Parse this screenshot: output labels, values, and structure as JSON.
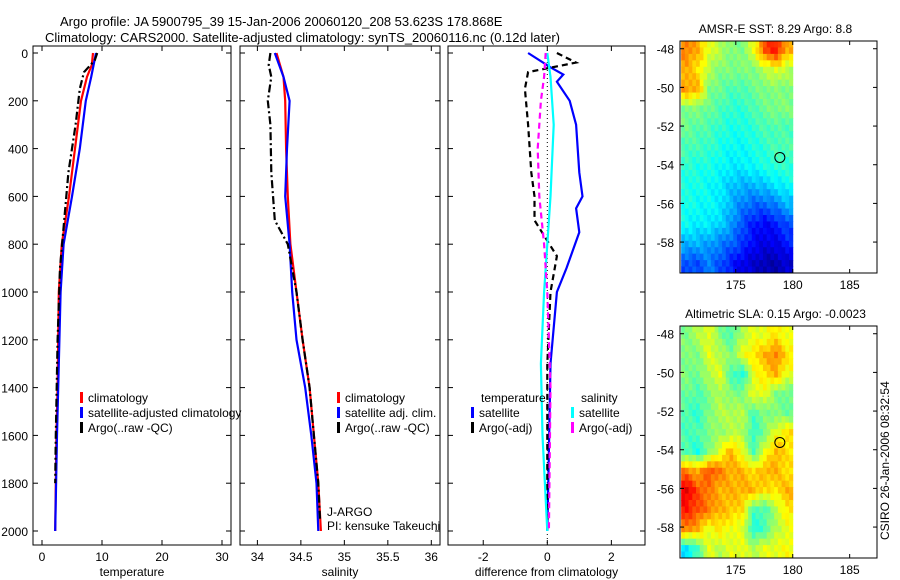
{
  "title_line1": "Argo profile: JA 5900795_39 15-Jan-2006 20060120_208 53.623S 178.868E",
  "title_line2": "Climatology: CARS2000. Satellite-adjusted climatology: synTS_20060116.nc (0.12d later)",
  "credit": "CSIRO 26-Jan-2006 08:32:54",
  "chart_data": [
    {
      "type": "line",
      "id": "temperature",
      "xlabel": "temperature",
      "ylabel": "",
      "xlim": [
        -1.5,
        31.5
      ],
      "ylim": [
        2060,
        0
      ],
      "xticks": [
        0,
        10,
        20,
        30
      ],
      "yticks": [
        0,
        200,
        400,
        600,
        800,
        1000,
        1200,
        1400,
        1600,
        1800,
        2000
      ],
      "legend": [
        "climatology",
        "satellite-adjusted climatology",
        "Argo(..raw -QC)"
      ],
      "series": [
        {
          "name": "climatology",
          "color": "#ff0000",
          "style": "solid",
          "depth": [
            0,
            50,
            100,
            200,
            400,
            600,
            800,
            1000,
            1200,
            1400,
            1600,
            1800,
            2000
          ],
          "values": [
            8.5,
            8.3,
            7.5,
            6.5,
            5.5,
            4.5,
            3.3,
            2.8,
            2.7,
            2.6,
            2.4,
            2.3,
            2.2
          ]
        },
        {
          "name": "satellite-adjusted climatology",
          "color": "#0000ff",
          "style": "solid",
          "depth": [
            0,
            100,
            200,
            400,
            600,
            800,
            1000,
            1200,
            1600,
            2000
          ],
          "values": [
            9.0,
            8.2,
            7.3,
            6.3,
            5.0,
            3.6,
            3.1,
            2.9,
            2.5,
            2.2
          ]
        },
        {
          "name": "Argo(..raw -QC)",
          "color": "#000000",
          "style": "dashdot",
          "depth": [
            0,
            30,
            80,
            150,
            300,
            500,
            700,
            900,
            1200,
            1600,
            1800
          ],
          "values": [
            9.2,
            8.8,
            7.0,
            6.3,
            5.6,
            4.4,
            3.7,
            3.0,
            2.6,
            2.3,
            2.2
          ]
        }
      ]
    },
    {
      "type": "line",
      "id": "salinity",
      "xlabel": "salinity",
      "xlim": [
        33.8,
        36.1
      ],
      "ylim": [
        2060,
        0
      ],
      "xticks": [
        34,
        34.5,
        35,
        35.5,
        36
      ],
      "legend": [
        "climatology",
        "satellite adj. clim.",
        "Argo(..raw -QC)"
      ],
      "annotation": [
        "J-ARGO",
        "PI: kensuke Takeuchi"
      ],
      "series": [
        {
          "name": "climatology",
          "color": "#ff0000",
          "style": "solid",
          "depth": [
            0,
            100,
            200,
            400,
            600,
            800,
            1000,
            1200,
            1400,
            1600,
            1800,
            2000
          ],
          "values": [
            34.22,
            34.3,
            34.32,
            34.33,
            34.35,
            34.38,
            34.45,
            34.52,
            34.6,
            34.65,
            34.7,
            34.73
          ]
        },
        {
          "name": "satellite adj. clim.",
          "color": "#0000ff",
          "style": "solid",
          "depth": [
            0,
            100,
            200,
            400,
            600,
            800,
            1000,
            1200,
            1400,
            1600,
            1800,
            2000
          ],
          "values": [
            34.2,
            34.3,
            34.37,
            34.34,
            34.32,
            34.37,
            34.4,
            34.45,
            34.55,
            34.62,
            34.68,
            34.7
          ]
        },
        {
          "name": "Argo(..raw -QC)",
          "color": "#000000",
          "style": "dashdot",
          "depth": [
            0,
            50,
            100,
            200,
            300,
            500,
            700,
            800,
            1000,
            1200,
            1400,
            1600,
            1800,
            1950
          ],
          "values": [
            34.15,
            34.13,
            34.16,
            34.12,
            34.15,
            34.16,
            34.2,
            34.35,
            34.45,
            34.52,
            34.6,
            34.65,
            34.7,
            34.72
          ]
        }
      ]
    },
    {
      "type": "line",
      "id": "difference",
      "xlabel": "difference from climatology",
      "xlim": [
        -3.1,
        3.05
      ],
      "ylim": [
        2060,
        0
      ],
      "xticks": [
        -2,
        0,
        2
      ],
      "legend_headers": [
        "temperature",
        "salinity"
      ],
      "legend": [
        "satellite",
        "Argo(-adj)",
        "satellite",
        "Argo(-adj)"
      ],
      "series": [
        {
          "name": "temperature satellite",
          "color": "#0000ff",
          "style": "solid",
          "depth": [
            0,
            60,
            90,
            120,
            200,
            300,
            500,
            600,
            650,
            750,
            900,
            1000,
            1300,
            1800,
            2000
          ],
          "values": [
            -0.6,
            0.1,
            0.5,
            0.3,
            0.7,
            0.9,
            1.0,
            1.1,
            0.9,
            1.0,
            0.6,
            0.3,
            0.1,
            0.03,
            0
          ]
        },
        {
          "name": "temperature Argo(-adj)",
          "color": "#000000",
          "style": "dash",
          "depth": [
            0,
            40,
            80,
            150,
            300,
            500,
            600,
            700,
            850,
            1000,
            1300,
            2000
          ],
          "values": [
            0.3,
            0.9,
            -0.6,
            -0.7,
            -0.6,
            -0.5,
            -0.4,
            -0.4,
            0.3,
            0.1,
            0,
            0
          ]
        },
        {
          "name": "salinity satellite",
          "color": "#00ffff",
          "style": "solid",
          "depth": [
            0,
            100,
            300,
            600,
            800,
            1000,
            1300,
            1600,
            2000
          ],
          "values": [
            0,
            0.1,
            0.2,
            0.1,
            0,
            -0.1,
            -0.2,
            -0.15,
            0
          ]
        },
        {
          "name": "salinity Argo(-adj)",
          "color": "#ff00ff",
          "style": "dash",
          "depth": [
            0,
            100,
            200,
            400,
            600,
            800,
            1000,
            1400,
            2000
          ],
          "values": [
            -0.05,
            -0.1,
            -0.2,
            -0.3,
            -0.25,
            -0.1,
            0,
            0.1,
            0.05
          ]
        }
      ]
    },
    {
      "type": "heatmap",
      "id": "sst-map",
      "title": "AMSR-E SST: 8.29 Argo: 8.8",
      "xlim": [
        170.1,
        187.4
      ],
      "ylim": [
        -59.6,
        -47.6
      ],
      "xticks": [
        175,
        180,
        185
      ],
      "yticks": [
        -48,
        -50,
        -52,
        -54,
        -56,
        -58
      ],
      "data_lon": [
        170.2,
        180
      ],
      "marker": {
        "lon": 178.868,
        "lat": -53.623
      },
      "levels": [
        [
          0.75,
          0.7,
          0.6,
          0.55,
          0.5,
          0.5,
          0.6,
          0.8,
          0.85,
          0.7
        ],
        [
          0.7,
          0.65,
          0.55,
          0.5,
          0.5,
          0.5,
          0.5,
          0.55,
          0.6,
          0.55
        ],
        [
          0.72,
          0.7,
          0.5,
          0.48,
          0.45,
          0.45,
          0.48,
          0.5,
          0.5,
          0.5
        ],
        [
          0.5,
          0.5,
          0.48,
          0.45,
          0.42,
          0.42,
          0.45,
          0.48,
          0.5,
          0.5
        ],
        [
          0.48,
          0.46,
          0.45,
          0.42,
          0.4,
          0.4,
          0.42,
          0.45,
          0.45,
          0.45
        ],
        [
          0.45,
          0.44,
          0.43,
          0.4,
          0.38,
          0.38,
          0.4,
          0.42,
          0.45,
          0.45
        ],
        [
          0.42,
          0.4,
          0.4,
          0.38,
          0.36,
          0.36,
          0.38,
          0.4,
          0.42,
          0.42
        ],
        [
          0.4,
          0.4,
          0.38,
          0.36,
          0.32,
          0.3,
          0.3,
          0.32,
          0.35,
          0.38
        ],
        [
          0.4,
          0.38,
          0.38,
          0.36,
          0.3,
          0.25,
          0.22,
          0.22,
          0.25,
          0.3
        ],
        [
          0.38,
          0.36,
          0.36,
          0.33,
          0.28,
          0.2,
          0.15,
          0.12,
          0.15,
          0.2
        ],
        [
          0.3,
          0.3,
          0.28,
          0.25,
          0.22,
          0.18,
          0.12,
          0.1,
          0.1,
          0.15
        ],
        [
          0.2,
          0.2,
          0.25,
          0.2,
          0.15,
          0.1,
          0.08,
          0.05,
          0.05,
          0.08
        ]
      ]
    },
    {
      "type": "heatmap",
      "id": "sla-map",
      "title": "Altimetric SLA: 0.15 Argo: -0.0023",
      "xlim": [
        170.1,
        187.4
      ],
      "ylim": [
        -59.6,
        -47.6
      ],
      "xticks": [
        175,
        180,
        185
      ],
      "yticks": [
        -48,
        -50,
        -52,
        -54,
        -56,
        -58
      ],
      "data_lon": [
        170.2,
        180
      ],
      "marker": {
        "lon": 178.868,
        "lat": -53.623
      },
      "levels": [
        [
          0.5,
          0.55,
          0.6,
          0.5,
          0.45,
          0.55,
          0.6,
          0.6,
          0.65,
          0.6
        ],
        [
          0.5,
          0.5,
          0.6,
          0.55,
          0.5,
          0.6,
          0.65,
          0.7,
          0.75,
          0.65
        ],
        [
          0.5,
          0.48,
          0.55,
          0.6,
          0.45,
          0.4,
          0.6,
          0.65,
          0.7,
          0.6
        ],
        [
          0.48,
          0.45,
          0.5,
          0.55,
          0.5,
          0.5,
          0.6,
          0.6,
          0.5,
          0.48
        ],
        [
          0.45,
          0.42,
          0.5,
          0.55,
          0.55,
          0.55,
          0.45,
          0.5,
          0.5,
          0.48
        ],
        [
          0.45,
          0.45,
          0.5,
          0.52,
          0.55,
          0.55,
          0.42,
          0.5,
          0.6,
          0.65
        ],
        [
          0.45,
          0.4,
          0.5,
          0.6,
          0.7,
          0.6,
          0.45,
          0.6,
          0.7,
          0.65
        ],
        [
          0.75,
          0.7,
          0.8,
          0.75,
          0.7,
          0.7,
          0.65,
          0.7,
          0.7,
          0.65
        ],
        [
          0.9,
          0.8,
          0.75,
          0.7,
          0.7,
          0.7,
          0.7,
          0.65,
          0.65,
          0.7
        ],
        [
          0.85,
          0.8,
          0.75,
          0.7,
          0.68,
          0.65,
          0.45,
          0.45,
          0.55,
          0.65
        ],
        [
          0.75,
          0.7,
          0.6,
          0.65,
          0.6,
          0.6,
          0.4,
          0.45,
          0.55,
          0.6
        ],
        [
          0.35,
          0.45,
          0.6,
          0.55,
          0.6,
          0.6,
          0.55,
          0.6,
          0.6,
          0.62
        ]
      ]
    }
  ]
}
